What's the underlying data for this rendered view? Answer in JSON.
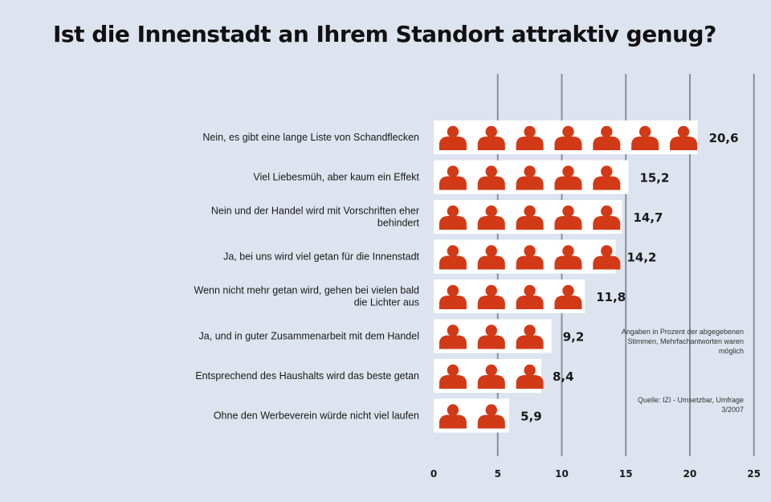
{
  "title": "Ist die Innenstadt an Ihrem Standort attraktiv genug?",
  "notes": {
    "basis": "Angaben in Prozent der abgegebenen Stimmen, Mehrfachantworten waren möglich",
    "source": "Quelle: IZI - Umsetzbar, Umfrage 3/2007"
  },
  "colors": {
    "background": "#dde3ef",
    "tile": "#ffffff",
    "icon": "#d23a17",
    "gridline": "#8a8f99",
    "text": "#1a1a1a"
  },
  "icon": "person-icon",
  "chart_data": {
    "type": "bar",
    "orientation": "horizontal",
    "title": "Ist die Innenstadt an Ihrem Standort attraktiv genug?",
    "categories": [
      "Nein, es gibt eine lange Liste von Schandflecken",
      "Viel Liebesmüh, aber kaum ein Effekt",
      "Nein und der Handel wird mit Vorschriften eher behindert",
      "Ja, bei uns wird viel getan für die Innenstadt",
      "Wenn nicht mehr getan wird, gehen bei vielen bald die Lichter aus",
      "Ja, und in guter Zusammenarbeit mit dem Handel",
      "Entsprechend des Haushalts wird das beste getan",
      "Ohne den Werbeverein würde nicht viel laufen"
    ],
    "values": [
      20.6,
      15.2,
      14.7,
      14.2,
      11.8,
      9.2,
      8.4,
      5.9
    ],
    "value_labels": [
      "20,6",
      "15,2",
      "14,7",
      "14,2",
      "11,8",
      "9,2",
      "8,4",
      "5,9"
    ],
    "xticks": [
      "0",
      "5",
      "10",
      "15",
      "20",
      "25"
    ],
    "xlim": [
      0,
      25
    ],
    "units_per_icon": 3,
    "grid": true
  }
}
